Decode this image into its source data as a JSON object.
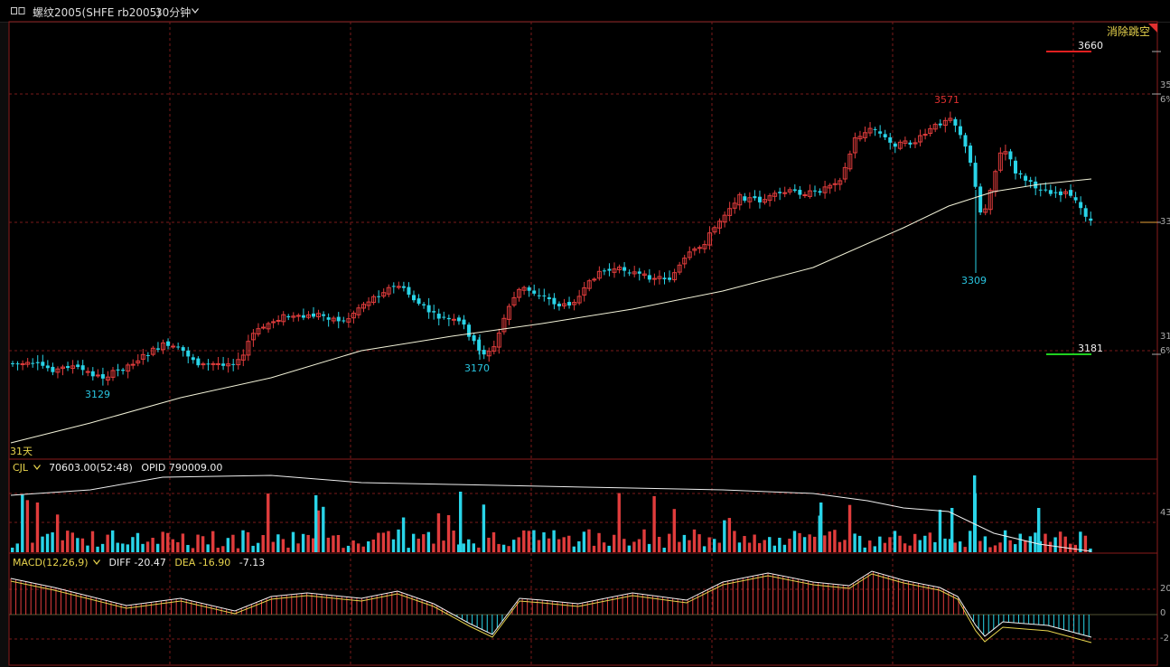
{
  "header": {
    "title": "螺纹2005(SHFE rb2005)",
    "period": "30分钟"
  },
  "overlay": {
    "gap_button": "消除跳空",
    "days_label": "31天"
  },
  "price_panel": {
    "y_ticks": [
      {
        "v": 3500,
        "label": "35",
        "pct": "6%"
      },
      {
        "v": 3300,
        "label": "33",
        "pct": ""
      },
      {
        "v": 3100,
        "label": "31",
        "pct": "6%"
      }
    ],
    "high_line": {
      "label": "3660",
      "color": "#e02020"
    },
    "low_line": {
      "label": "3181",
      "color": "#20d020"
    },
    "annotations": [
      {
        "text": "3129",
        "color": "#29c5e0",
        "type": "low"
      },
      {
        "text": "3170",
        "color": "#29c5e0",
        "type": "low"
      },
      {
        "text": "3571",
        "color": "#e03030",
        "type": "high"
      },
      {
        "text": "3309",
        "color": "#29c5e0",
        "type": "low"
      }
    ],
    "current_tick": "33"
  },
  "volume_panel": {
    "name": "CJL",
    "value": "70603.00(52:48)",
    "opid": "OPID 790009.00",
    "y_tick": "43"
  },
  "macd_panel": {
    "name": "MACD(12,26,9)",
    "diff": "DIFF -20.47",
    "dea": "DEA -16.90",
    "macd": "-7.13",
    "y_ticks": [
      "20",
      "0",
      "-2"
    ]
  },
  "colors": {
    "up": "#e03c3c",
    "down": "#29d4e8",
    "grid": "#7a1a1a",
    "ma": "#f2f2d8",
    "dea": "#e8d44d"
  }
}
